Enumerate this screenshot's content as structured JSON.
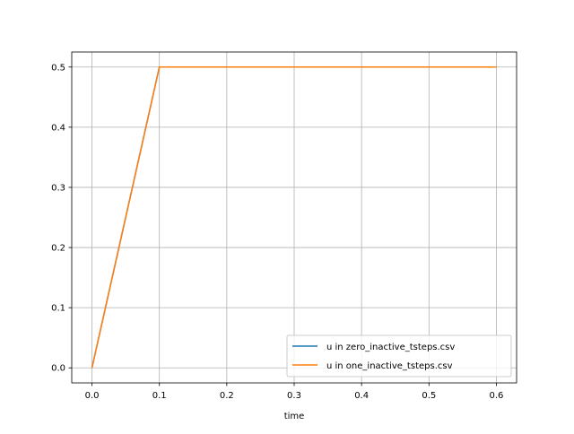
{
  "chart_data": {
    "type": "line",
    "title": "",
    "xlabel": "time",
    "ylabel": "",
    "xlim": [
      -0.03,
      0.63
    ],
    "ylim": [
      -0.025,
      0.525
    ],
    "xticks": [
      "0.0",
      "0.1",
      "0.2",
      "0.3",
      "0.4",
      "0.5",
      "0.6"
    ],
    "yticks": [
      "0.0",
      "0.1",
      "0.2",
      "0.3",
      "0.4",
      "0.5"
    ],
    "grid": true,
    "legend_position": "lower-right",
    "series": [
      {
        "name": "u in zero_inactive_tsteps.csv",
        "color": "#1f77b4",
        "x": [
          0.0,
          0.1,
          0.2,
          0.3,
          0.4,
          0.5,
          0.6
        ],
        "y": [
          0.0,
          0.5,
          0.5,
          0.5,
          0.5,
          0.5,
          0.5
        ]
      },
      {
        "name": "u in one_inactive_tsteps.csv",
        "color": "#ff7f0e",
        "x": [
          0.0,
          0.1,
          0.2,
          0.3,
          0.4,
          0.5,
          0.6
        ],
        "y": [
          0.0,
          0.5,
          0.5,
          0.5,
          0.5,
          0.5,
          0.5
        ]
      }
    ]
  }
}
